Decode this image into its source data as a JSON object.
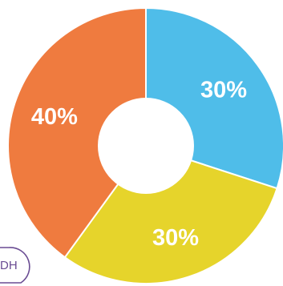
{
  "chart_data": {
    "type": "pie",
    "donut": true,
    "start_angle_deg": 0,
    "direction": "clockwise",
    "slices": [
      {
        "label": "30%",
        "value": 30,
        "color": "#4fbde9"
      },
      {
        "label": "30%",
        "value": 30,
        "color": "#e6d42b"
      },
      {
        "label": "40%",
        "value": 40,
        "color": "#ef7b3f"
      }
    ],
    "title": "",
    "legend": "none"
  },
  "corner_badge": {
    "text": "DH",
    "color": "#6a4c93"
  }
}
